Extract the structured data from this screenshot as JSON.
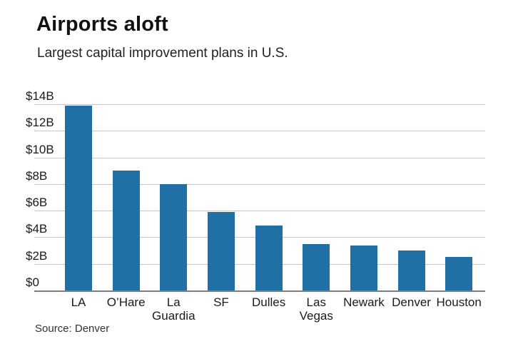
{
  "header": {
    "title": "Airports aloft",
    "subtitle": "Largest capital improvement plans in U.S."
  },
  "source": "Source: Denver",
  "chart_data": {
    "type": "bar",
    "title": "Airports aloft",
    "subtitle": "Largest capital improvement plans in U.S.",
    "source": "Source: Denver",
    "categories": [
      "LA",
      "O’Hare",
      "La Guardia",
      "SF",
      "Dulles",
      "Las Vegas",
      "Newark",
      "Denver",
      "Houston"
    ],
    "category_tick_lines": [
      [
        "LA"
      ],
      [
        "O’Hare"
      ],
      [
        "La",
        "Guardia"
      ],
      [
        "SF"
      ],
      [
        "Dulles"
      ],
      [
        "Las",
        "Vegas"
      ],
      [
        "Newark"
      ],
      [
        "Denver"
      ],
      [
        "Houston"
      ]
    ],
    "values": [
      13.9,
      9.0,
      8.0,
      5.9,
      4.9,
      3.5,
      3.4,
      3.0,
      2.5
    ],
    "unit": "USD billions",
    "xlabel": "",
    "ylabel": "",
    "ylim": [
      0,
      14
    ],
    "yticks": [
      {
        "value": 0,
        "label": "$0"
      },
      {
        "value": 2,
        "label": "$2B"
      },
      {
        "value": 4,
        "label": "$4B"
      },
      {
        "value": 6,
        "label": "$6B"
      },
      {
        "value": 8,
        "label": "$8B"
      },
      {
        "value": 10,
        "label": "$10B"
      },
      {
        "value": 12,
        "label": "$12B"
      },
      {
        "value": 14,
        "label": "$14B"
      }
    ],
    "grid": true,
    "legend_position": "none",
    "bar_color": "#2070A6",
    "gridline_color": "#c7c7c7",
    "axis_color": "#7d7d7d",
    "text_color": "#1a1a1a"
  }
}
